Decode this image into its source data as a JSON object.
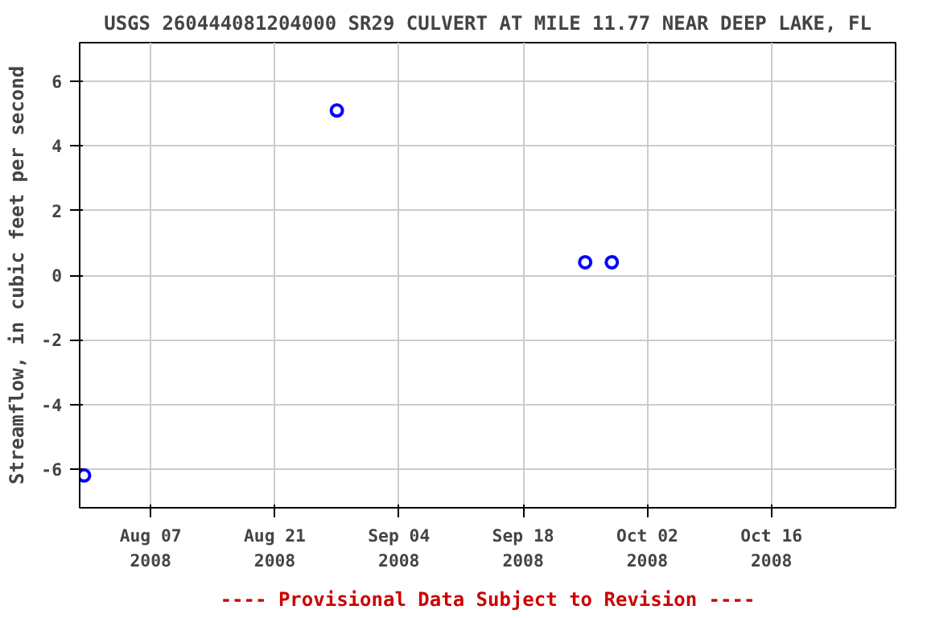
{
  "chart_data": {
    "type": "scatter",
    "title": "USGS 260444081204000 SR29 CULVERT AT MILE 11.77 NEAR DEEP LAKE, FL",
    "ylabel": "Streamflow, in cubic feet per second",
    "x": [
      "2008-07-30T12:00",
      "2008-08-28",
      "2008-09-25",
      "2008-09-28"
    ],
    "series": [
      {
        "color": "#0000ff",
        "values": [
          -6.2,
          5.1,
          0.4,
          0.4
        ]
      }
    ],
    "xlim": [
      "2008-07-30",
      "2008-10-30"
    ],
    "xticks": [
      {
        "value": "2008-08-07",
        "label": "Aug 07\n2008"
      },
      {
        "value": "2008-08-21",
        "label": "Aug 21\n2008"
      },
      {
        "value": "2008-09-04",
        "label": "Sep 04\n2008"
      },
      {
        "value": "2008-09-18",
        "label": "Sep 18\n2008"
      },
      {
        "value": "2008-10-02",
        "label": "Oct 02\n2008"
      },
      {
        "value": "2008-10-16",
        "label": "Oct 16\n2008"
      }
    ],
    "ylim": [
      -7.2,
      7.2
    ],
    "yticks": [
      -6,
      -4,
      -2,
      0,
      2,
      4,
      6
    ],
    "grid": true,
    "marker": "circle",
    "annotations": [
      "---- Provisional Data Subject to Revision ----"
    ]
  }
}
